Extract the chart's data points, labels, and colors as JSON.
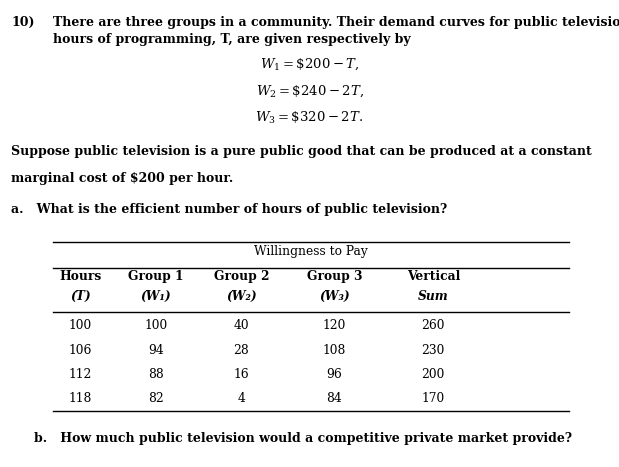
{
  "title_number": "10)",
  "title_line1": "There are three groups in a community. Their demand curves for public television in",
  "title_line2": "hours of programming, T, are given respectively by",
  "eq1": "$W_1 = \\$200 - T,$",
  "eq2": "$W_2 = \\$240 - 2T,$",
  "eq3": "$W_3 = \\$320 - 2T.$",
  "para_line1": "Suppose public television is a pure public good that can be produced at a constant",
  "para_line2": "marginal cost of $200 per hour.",
  "question_a": "a.   What is the efficient number of hours of public television?",
  "table_header_main": "Willingness to Pay",
  "table_col_headers_line1": [
    "Hours",
    "Group 1",
    "Group 2",
    "Group 3",
    "Vertical"
  ],
  "table_col_headers_line2": [
    "(T)",
    "(W₁)",
    "(W₂)",
    "(W₃)",
    "Sum"
  ],
  "table_data": [
    [
      100,
      100,
      40,
      120,
      260
    ],
    [
      106,
      94,
      28,
      108,
      230
    ],
    [
      112,
      88,
      16,
      96,
      200
    ],
    [
      118,
      82,
      4,
      84,
      170
    ]
  ],
  "question_b_a": "b.   How much public television would a competitive private market provide?",
  "bg_color": "#ffffff",
  "text_color": "#000000"
}
